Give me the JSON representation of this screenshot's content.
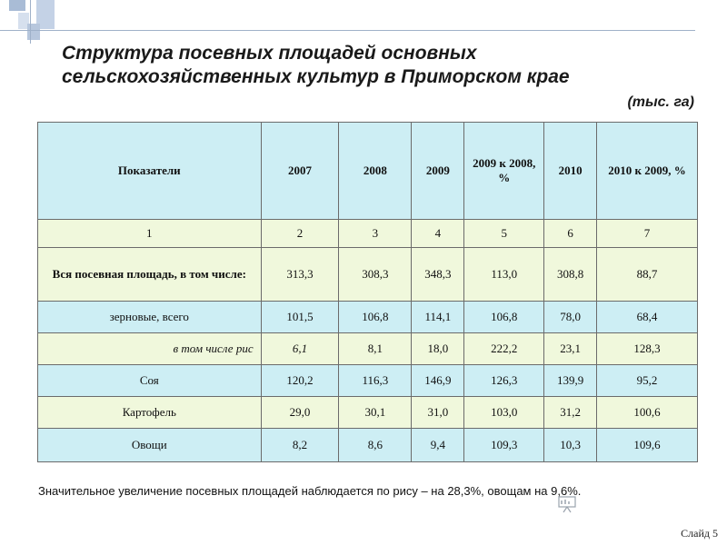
{
  "title": "Структура посевных площадей основных сельскохозяйственных культур в Приморском крае",
  "unit": "(тыс. га)",
  "table": {
    "headers": [
      "Показатели",
      "2007",
      "2008",
      "2009",
      "2009 к 2008, %",
      "2010",
      "2010 к 2009, %"
    ],
    "column_numbers": [
      "1",
      "2",
      "3",
      "4",
      "5",
      "6",
      "7"
    ],
    "rows": [
      {
        "label": "Вся посевная площадь, в том числе:",
        "values": [
          "313,3",
          "308,3",
          "348,3",
          "113,0",
          "308,8",
          "88,7"
        ]
      },
      {
        "label": "зерновые, всего",
        "values": [
          "101,5",
          "106,8",
          "114,1",
          "106,8",
          "78,0",
          "68,4"
        ]
      },
      {
        "label": "в том числе рис",
        "values": [
          "6,1",
          "8,1",
          "18,0",
          "222,2",
          "23,1",
          "128,3"
        ]
      },
      {
        "label": "Соя",
        "values": [
          "120,2",
          "116,3",
          "146,9",
          "126,3",
          "139,9",
          "95,2"
        ]
      },
      {
        "label": "Картофель",
        "values": [
          "29,0",
          "30,1",
          "31,0",
          "103,0",
          "31,2",
          "100,6"
        ]
      },
      {
        "label": "Овощи",
        "values": [
          "8,2",
          "8,6",
          "9,4",
          "109,3",
          "10,3",
          "109,6"
        ]
      }
    ]
  },
  "note": "Значительное увеличение посевных площадей наблюдается по рису – на 28,3%, овощам на 9,6%.",
  "slide_label": "Слайд 5",
  "icons": {
    "cursor": "presentation-pointer-icon"
  },
  "colors": {
    "header_bg": "#cdeef4",
    "alt_bg": "#f0f8dc"
  }
}
